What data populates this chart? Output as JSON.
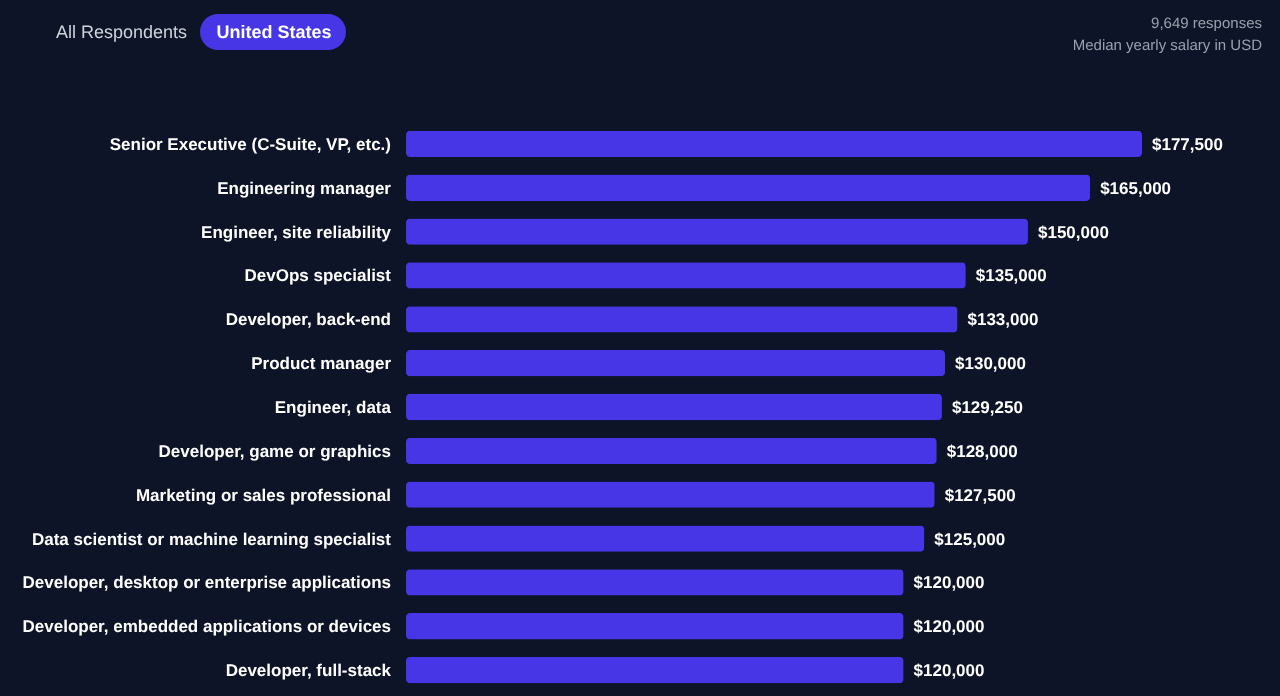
{
  "chart_data": {
    "type": "bar",
    "orientation": "horizontal",
    "subtitle": "Median yearly salary in USD",
    "annotations": [
      "All Respondents",
      "United States",
      "9,649 responses"
    ],
    "categories": [
      "Senior Executive (C-Suite, VP, etc.)",
      "Engineering manager",
      "Engineer, site reliability",
      "DevOps specialist",
      "Developer, back-end",
      "Product manager",
      "Engineer, data",
      "Developer, game or graphics",
      "Marketing or sales professional",
      "Data scientist or machine learning specialist",
      "Developer, desktop or enterprise applications",
      "Developer, embedded applications or devices",
      "Developer, full-stack"
    ],
    "values": [
      177500,
      165000,
      150000,
      135000,
      133000,
      130000,
      129250,
      128000,
      127500,
      125000,
      120000,
      120000,
      120000
    ],
    "value_labels": [
      "$177,500",
      "$165,000",
      "$150,000",
      "$135,000",
      "$133,000",
      "$130,000",
      "$129,250",
      "$128,000",
      "$127,500",
      "$125,000",
      "$120,000",
      "$120,000",
      "$120,000"
    ],
    "color": "#4636e6",
    "xlim": [
      0,
      177500
    ]
  }
}
